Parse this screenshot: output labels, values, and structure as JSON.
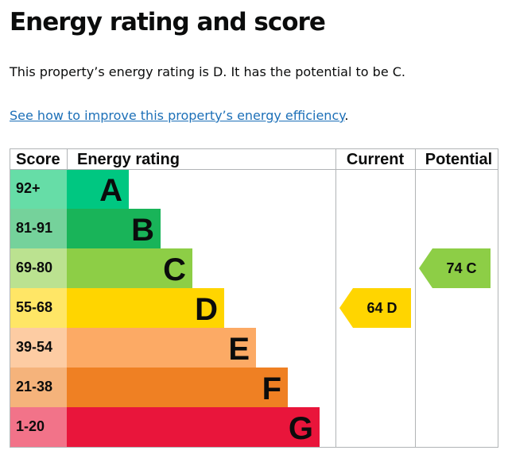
{
  "page": {
    "title": "Energy rating and score",
    "summary": "This property’s energy rating is D. It has the potential to be C.",
    "link_text": "See how to improve this property’s energy efficiency",
    "link_suffix": "."
  },
  "table": {
    "headers": {
      "score": "Score",
      "rating": "Energy rating",
      "current": "Current",
      "potential": "Potential"
    },
    "border_color": "#b1b4b6"
  },
  "chart_data": {
    "type": "bar",
    "bands": [
      {
        "score": "92+",
        "letter": "A",
        "color": "#00c781",
        "score_bg": "#66dda7",
        "text_color": "#0b0c0c"
      },
      {
        "score": "81-91",
        "letter": "B",
        "color": "#19b459",
        "score_bg": "#75d29b",
        "text_color": "#0b0c0c"
      },
      {
        "score": "69-80",
        "letter": "C",
        "color": "#8dce46",
        "score_bg": "#bbe290",
        "text_color": "#0b0c0c"
      },
      {
        "score": "55-68",
        "letter": "D",
        "color": "#ffd500",
        "score_bg": "#ffe666",
        "text_color": "#0b0c0c"
      },
      {
        "score": "39-54",
        "letter": "E",
        "color": "#fcaa65",
        "score_bg": "#fdcca3",
        "text_color": "#0b0c0c"
      },
      {
        "score": "21-38",
        "letter": "F",
        "color": "#ef8023",
        "score_bg": "#f5b37b",
        "text_color": "#0b0c0c"
      },
      {
        "score": "1-20",
        "letter": "G",
        "color": "#e9153b",
        "score_bg": "#f27389",
        "text_color": "#0b0c0c"
      }
    ],
    "current": {
      "value": 64,
      "letter": "D",
      "label": "64  D",
      "color": "#ffd500"
    },
    "potential": {
      "value": 74,
      "letter": "C",
      "label": "74  C",
      "color": "#8dce46"
    }
  }
}
